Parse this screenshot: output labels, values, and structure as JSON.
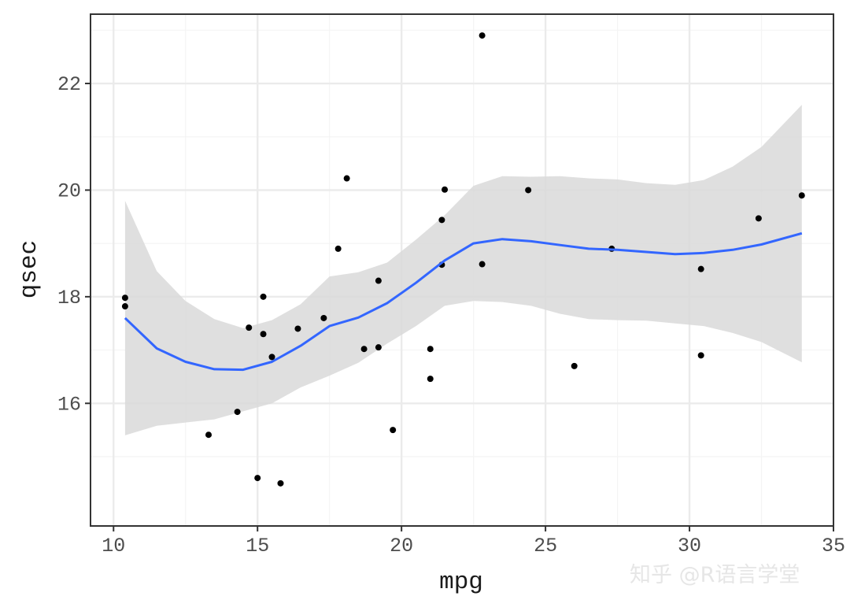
{
  "chart_data": {
    "type": "scatter",
    "xlabel": "mpg",
    "ylabel": "qsec",
    "xlim": [
      9.2,
      35.0
    ],
    "ylim": [
      13.7,
      23.3
    ],
    "x_ticks": [
      10,
      15,
      20,
      25,
      30,
      35
    ],
    "y_ticks": [
      16,
      18,
      20,
      22
    ],
    "x_minor": [
      12.5,
      17.5,
      22.5,
      27.5,
      32.5
    ],
    "y_minor": [
      15,
      17,
      19,
      21,
      23
    ],
    "grid": true,
    "points": [
      {
        "x": 10.4,
        "y": 17.98
      },
      {
        "x": 10.4,
        "y": 17.82
      },
      {
        "x": 13.3,
        "y": 15.41
      },
      {
        "x": 14.3,
        "y": 15.84
      },
      {
        "x": 14.7,
        "y": 17.42
      },
      {
        "x": 15.0,
        "y": 14.6
      },
      {
        "x": 15.2,
        "y": 18.0
      },
      {
        "x": 15.2,
        "y": 17.3
      },
      {
        "x": 15.5,
        "y": 16.87
      },
      {
        "x": 15.8,
        "y": 14.5
      },
      {
        "x": 16.4,
        "y": 17.4
      },
      {
        "x": 17.3,
        "y": 17.6
      },
      {
        "x": 17.8,
        "y": 18.9
      },
      {
        "x": 18.1,
        "y": 20.22
      },
      {
        "x": 18.7,
        "y": 17.02
      },
      {
        "x": 19.2,
        "y": 18.3
      },
      {
        "x": 19.2,
        "y": 17.05
      },
      {
        "x": 19.7,
        "y": 15.5
      },
      {
        "x": 21.0,
        "y": 16.46
      },
      {
        "x": 21.0,
        "y": 17.02
      },
      {
        "x": 21.4,
        "y": 19.44
      },
      {
        "x": 21.4,
        "y": 18.6
      },
      {
        "x": 21.5,
        "y": 20.01
      },
      {
        "x": 22.8,
        "y": 22.9
      },
      {
        "x": 22.8,
        "y": 18.61
      },
      {
        "x": 24.4,
        "y": 20.0
      },
      {
        "x": 26.0,
        "y": 16.7
      },
      {
        "x": 27.3,
        "y": 18.9
      },
      {
        "x": 30.4,
        "y": 18.52
      },
      {
        "x": 30.4,
        "y": 16.9
      },
      {
        "x": 32.4,
        "y": 19.47
      },
      {
        "x": 33.9,
        "y": 19.9
      }
    ],
    "smooth": {
      "x": [
        10.4,
        11.5,
        12.5,
        13.5,
        14.5,
        15.5,
        16.5,
        17.5,
        18.5,
        19.5,
        20.5,
        21.5,
        22.5,
        23.5,
        24.5,
        25.5,
        26.5,
        27.5,
        28.5,
        29.5,
        30.5,
        31.5,
        32.5,
        33.9
      ],
      "y": [
        17.6,
        17.03,
        16.78,
        16.64,
        16.63,
        16.78,
        17.08,
        17.45,
        17.61,
        17.88,
        18.26,
        18.68,
        19.0,
        19.08,
        19.04,
        18.97,
        18.9,
        18.88,
        18.84,
        18.8,
        18.82,
        18.88,
        18.98,
        19.19
      ],
      "lower": [
        15.4,
        15.58,
        15.64,
        15.7,
        15.85,
        16.0,
        16.3,
        16.52,
        16.76,
        17.12,
        17.45,
        17.83,
        17.92,
        17.9,
        17.83,
        17.68,
        17.58,
        17.56,
        17.55,
        17.5,
        17.45,
        17.32,
        17.15,
        16.77
      ],
      "upper": [
        19.8,
        18.48,
        17.92,
        17.58,
        17.41,
        17.56,
        17.86,
        18.38,
        18.46,
        18.64,
        19.07,
        19.53,
        20.08,
        20.26,
        20.25,
        20.26,
        20.22,
        20.2,
        20.13,
        20.1,
        20.19,
        20.44,
        20.81,
        21.6
      ]
    },
    "colors": {
      "point": "#000000",
      "line": "#3366ff",
      "ribbon": "#d9d9d9",
      "grid_major": "#ebebeb",
      "grid_minor": "#f4f4f4",
      "panel_border": "#333333"
    }
  },
  "watermark": "知乎 @R语言学堂"
}
